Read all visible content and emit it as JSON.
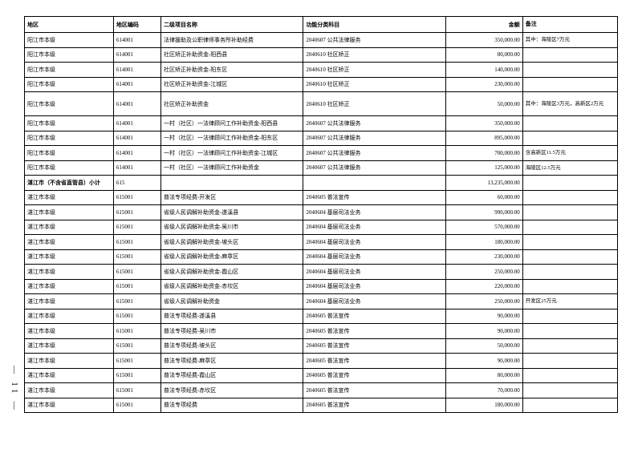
{
  "columns": [
    "地区",
    "地区编码",
    "二级项目名称",
    "功能分类科目",
    "金额",
    "备注"
  ],
  "rows": [
    {
      "region": "阳江市本级",
      "code": "614001",
      "proj": "法律援助及公职律师事务所补助经费",
      "func": "2040607 公共法律服务",
      "amt": "350,000.00",
      "note": "其中：海陵区7万元"
    },
    {
      "region": "阳江市本级",
      "code": "614001",
      "proj": "社区矫正补助资金-阳西县",
      "func": "2040610 社区矫正",
      "amt": "80,000.00",
      "note": ""
    },
    {
      "region": "阳江市本级",
      "code": "614001",
      "proj": "社区矫正补助资金-阳东区",
      "func": "2040610 社区矫正",
      "amt": "140,000.00",
      "note": ""
    },
    {
      "region": "阳江市本级",
      "code": "614001",
      "proj": "社区矫正补助资金-江城区",
      "func": "2040610 社区矫正",
      "amt": "230,000.00",
      "note": ""
    },
    {
      "region": "阳江市本级",
      "code": "614001",
      "proj": "社区矫正补助资金",
      "func": "2040610 社区矫正",
      "amt": "50,000.00",
      "note": "其中：海陵区3万元，高新区2万元",
      "multiline": true
    },
    {
      "region": "阳江市本级",
      "code": "614001",
      "proj": "一村（社区）一法律顾问工作补助资金-阳西县",
      "func": "2040607 公共法律服务",
      "amt": "350,000.00",
      "note": ""
    },
    {
      "region": "阳江市本级",
      "code": "614001",
      "proj": "一村（社区）一法律顾问工作补助资金-阳东区",
      "func": "2040607 公共法律服务",
      "amt": "895,000.00",
      "note": ""
    },
    {
      "region": "阳江市本级",
      "code": "614001",
      "proj": "一村（社区）一法律顾问工作补助资金-江城区",
      "func": "2040607 公共法律服务",
      "amt": "700,000.00",
      "note": "含高新区11.5万元"
    },
    {
      "region": "阳江市本级",
      "code": "614001",
      "proj": "一村（社区）一法律顾问工作补助资金",
      "func": "2040607 公共法律服务",
      "amt": "125,000.00",
      "note": "海陵区12.5万元"
    },
    {
      "region": "湛江市（不含省直管县）小计",
      "code": "615",
      "proj": "",
      "func": "",
      "amt": "13,235,000.00",
      "note": "",
      "subtotal": true
    },
    {
      "region": "湛江市本级",
      "code": "615001",
      "proj": "普法专项经费-开发区",
      "func": "2040605 普法宣传",
      "amt": "60,000.00",
      "note": ""
    },
    {
      "region": "湛江市本级",
      "code": "615001",
      "proj": "省级人民调解补助资金-遂溪县",
      "func": "2040604 基层司法业务",
      "amt": "990,000.00",
      "note": ""
    },
    {
      "region": "湛江市本级",
      "code": "615001",
      "proj": "省级人民调解补助资金-吴川市",
      "func": "2040604 基层司法业务",
      "amt": "570,000.00",
      "note": ""
    },
    {
      "region": "湛江市本级",
      "code": "615001",
      "proj": "省级人民调解补助资金-坡头区",
      "func": "2040604 基层司法业务",
      "amt": "180,000.00",
      "note": ""
    },
    {
      "region": "湛江市本级",
      "code": "615001",
      "proj": "省级人民调解补助资金-麻章区",
      "func": "2040604 基层司法业务",
      "amt": "230,000.00",
      "note": ""
    },
    {
      "region": "湛江市本级",
      "code": "615001",
      "proj": "省级人民调解补助资金-霞山区",
      "func": "2040604 基层司法业务",
      "amt": "250,000.00",
      "note": ""
    },
    {
      "region": "湛江市本级",
      "code": "615001",
      "proj": "省级人民调解补助资金-赤坎区",
      "func": "2040604 基层司法业务",
      "amt": "220,000.00",
      "note": ""
    },
    {
      "region": "湛江市本级",
      "code": "615001",
      "proj": "省级人民调解补助资金",
      "func": "2040604 基层司法业务",
      "amt": "250,000.00",
      "note": "开发区25万元"
    },
    {
      "region": "湛江市本级",
      "code": "615001",
      "proj": "普法专项经费-遂溪县",
      "func": "2040605 普法宣传",
      "amt": "90,000.00",
      "note": ""
    },
    {
      "region": "湛江市本级",
      "code": "615001",
      "proj": "普法专项经费-吴川市",
      "func": "2040605 普法宣传",
      "amt": "90,000.00",
      "note": ""
    },
    {
      "region": "湛江市本级",
      "code": "615001",
      "proj": "普法专项经费-坡头区",
      "func": "2040605 普法宣传",
      "amt": "50,000.00",
      "note": ""
    },
    {
      "region": "湛江市本级",
      "code": "615001",
      "proj": "普法专项经费-麻章区",
      "func": "2040605 普法宣传",
      "amt": "90,000.00",
      "note": ""
    },
    {
      "region": "湛江市本级",
      "code": "615001",
      "proj": "普法专项经费-霞山区",
      "func": "2040605 普法宣传",
      "amt": "80,000.00",
      "note": ""
    },
    {
      "region": "湛江市本级",
      "code": "615001",
      "proj": "普法专项经费-赤坎区",
      "func": "2040605 普法宣传",
      "amt": "70,000.00",
      "note": ""
    },
    {
      "region": "湛江市本级",
      "code": "615001",
      "proj": "普法专项经费",
      "func": "2040605 普法宣传",
      "amt": "180,000.00",
      "note": ""
    }
  ],
  "page_number": "— 11 —"
}
